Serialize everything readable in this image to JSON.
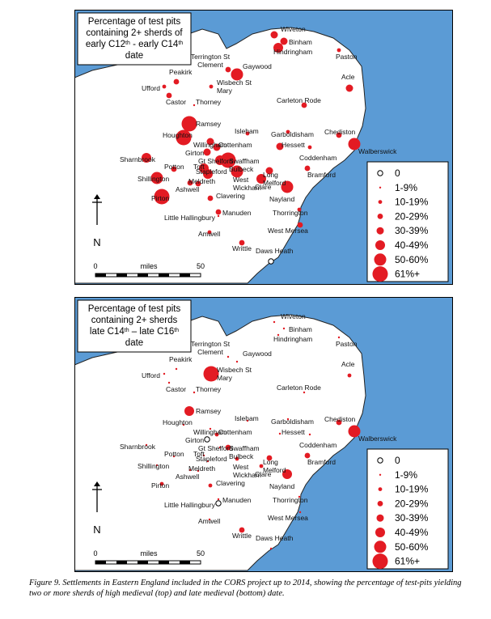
{
  "colors": {
    "sea": "#5b9bd5",
    "land": "#ffffff",
    "coast": "#222222",
    "site": "#e31b23",
    "zero": "#ffffff"
  },
  "legend": [
    "0",
    "1-9%",
    "10-19%",
    "20-29%",
    "30-39%",
    "40-49%",
    "50-60%",
    "61%+"
  ],
  "scale": {
    "start": "0",
    "unit": "miles",
    "end": "50"
  },
  "north_label": "N",
  "maps": [
    {
      "title_lines": [
        [
          "Percentage of test pits"
        ],
        [
          "containing 2+ sherds of"
        ],
        [
          "early C12",
          "th",
          " - early C14",
          "th"
        ],
        [
          "date"
        ]
      ],
      "places": [
        {
          "name": "Wiveton",
          "cat": 4
        },
        {
          "name": "Binham",
          "cat": 4
        },
        {
          "name": "Hindringham",
          "cat": 5
        },
        {
          "name": "Paston",
          "cat": 2
        },
        {
          "name": "Terrington St Clement",
          "cat": 3
        },
        {
          "name": "Gaywood",
          "cat": 6
        },
        {
          "name": "Peakirk",
          "cat": 3
        },
        {
          "name": "Wisbech St Mary",
          "cat": 2
        },
        {
          "name": "Acle",
          "cat": 4
        },
        {
          "name": "Ufford",
          "cat": 2
        },
        {
          "name": "Castor",
          "cat": 3
        },
        {
          "name": "Thorney",
          "cat": 1
        },
        {
          "name": "Carleton Rode",
          "cat": 3
        },
        {
          "name": "Ramsey",
          "cat": 7
        },
        {
          "name": "Isleham",
          "cat": 2
        },
        {
          "name": "Garboldisham",
          "cat": 2
        },
        {
          "name": "Chediston",
          "cat": 3
        },
        {
          "name": "Walberswick",
          "cat": 6
        },
        {
          "name": "Houghton",
          "cat": 7
        },
        {
          "name": "Willingham",
          "cat": 4
        },
        {
          "name": "Cottenham",
          "cat": 4
        },
        {
          "name": "Hessett",
          "cat": 4
        },
        {
          "name": "Coddenham",
          "cat": 2
        },
        {
          "name": "Girton",
          "cat": 4
        },
        {
          "name": "Swaffham Bulbeck",
          "cat": 7
        },
        {
          "name": "Gt Shelford",
          "cat": 5
        },
        {
          "name": "Sharnbrook",
          "cat": 5
        },
        {
          "name": "Potton",
          "cat": 3
        },
        {
          "name": "Toft",
          "cat": 5
        },
        {
          "name": "Stapleford",
          "cat": 5
        },
        {
          "name": "Long Melford",
          "cat": 4
        },
        {
          "name": "Bramford",
          "cat": 3
        },
        {
          "name": "Shillington",
          "cat": 6
        },
        {
          "name": "West Wickham",
          "cat": 6
        },
        {
          "name": "Clare",
          "cat": 5
        },
        {
          "name": "Ashwell",
          "cat": 3
        },
        {
          "name": "Meldreth",
          "cat": 3
        },
        {
          "name": "Nayland",
          "cat": 6
        },
        {
          "name": "Pirton",
          "cat": 7
        },
        {
          "name": "Clavering",
          "cat": 3
        },
        {
          "name": "Manuden",
          "cat": 3
        },
        {
          "name": "Thorrington",
          "cat": 2
        },
        {
          "name": "Little Hallingbury",
          "cat": 1
        },
        {
          "name": "West Mersea",
          "cat": 3
        },
        {
          "name": "Amwell",
          "cat": 2
        },
        {
          "name": "Writtle",
          "cat": 3
        },
        {
          "name": "Daws Heath",
          "cat": 0
        }
      ]
    },
    {
      "title_lines": [
        [
          "Percentage of test pits"
        ],
        [
          "containing 2+ sherds"
        ],
        [
          "late C14",
          "th",
          " – late C16",
          "th"
        ],
        [
          "date"
        ]
      ],
      "places": [
        {
          "name": "Wiveton",
          "cat": 1
        },
        {
          "name": "Binham",
          "cat": 1
        },
        {
          "name": "Hindringham",
          "cat": 1
        },
        {
          "name": "Paston",
          "cat": 1
        },
        {
          "name": "Terrington St Clement",
          "cat": 1
        },
        {
          "name": "Gaywood",
          "cat": 1
        },
        {
          "name": "Peakirk",
          "cat": 1
        },
        {
          "name": "Wisbech St Mary",
          "cat": 7
        },
        {
          "name": "Acle",
          "cat": 2
        },
        {
          "name": "Ufford",
          "cat": 1
        },
        {
          "name": "Castor",
          "cat": 1
        },
        {
          "name": "Thorney",
          "cat": 1
        },
        {
          "name": "Carleton Rode",
          "cat": 1
        },
        {
          "name": "Ramsey",
          "cat": 5
        },
        {
          "name": "Isleham",
          "cat": 1
        },
        {
          "name": "Garboldisham",
          "cat": 1
        },
        {
          "name": "Chediston",
          "cat": 3
        },
        {
          "name": "Walberswick",
          "cat": 6
        },
        {
          "name": "Houghton",
          "cat": 1
        },
        {
          "name": "Willingham",
          "cat": 1
        },
        {
          "name": "Cottenham",
          "cat": 2
        },
        {
          "name": "Hessett",
          "cat": 1
        },
        {
          "name": "Coddenham",
          "cat": 1
        },
        {
          "name": "Girton",
          "cat": 0
        },
        {
          "name": "Swaffham Bulbeck",
          "cat": 3
        },
        {
          "name": "Gt Shelford",
          "cat": 1
        },
        {
          "name": "Sharnbrook",
          "cat": 1
        },
        {
          "name": "Potton",
          "cat": 1
        },
        {
          "name": "Toft",
          "cat": 1
        },
        {
          "name": "Stapleford",
          "cat": 1
        },
        {
          "name": "Long Melford",
          "cat": 3
        },
        {
          "name": "Bramford",
          "cat": 3
        },
        {
          "name": "Shillington",
          "cat": 1
        },
        {
          "name": "West Wickham",
          "cat": 2
        },
        {
          "name": "Clare",
          "cat": 2
        },
        {
          "name": "Ashwell",
          "cat": 1
        },
        {
          "name": "Meldreth",
          "cat": 1
        },
        {
          "name": "Nayland",
          "cat": 5
        },
        {
          "name": "Pirton",
          "cat": 2
        },
        {
          "name": "Clavering",
          "cat": 2
        },
        {
          "name": "Manuden",
          "cat": 1
        },
        {
          "name": "Thorrington",
          "cat": 1
        },
        {
          "name": "Little Hallingbury",
          "cat": 0
        },
        {
          "name": "West Mersea",
          "cat": 1
        },
        {
          "name": "Amwell",
          "cat": 1
        },
        {
          "name": "Writtle",
          "cat": 3
        },
        {
          "name": "Daws Heath",
          "cat": 1
        }
      ]
    }
  ],
  "caption": "Figure 9. Settlements in Eastern England included in the CORS project up to 2014, showing the percentage of test-pits yielding two or more sherds of high medieval (top) and late medieval (bottom) date."
}
